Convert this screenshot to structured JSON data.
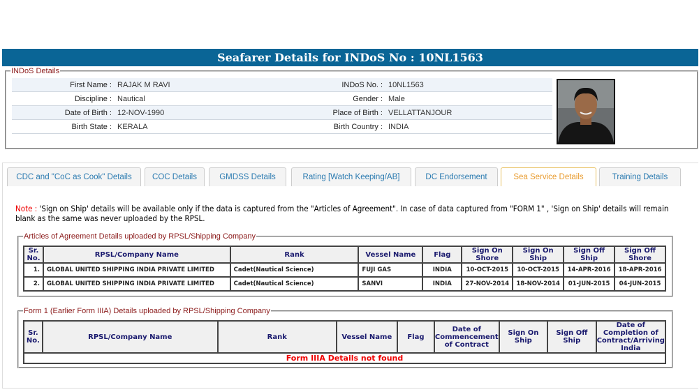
{
  "header": {
    "title": "Seafarer Details for INDoS No : 10NL1563"
  },
  "indos": {
    "legend": "INDoS Details",
    "rows": [
      {
        "l1": "First Name :",
        "v1": "RAJAK M RAVI",
        "l2": "INDoS No. :",
        "v2": "10NL1563"
      },
      {
        "l1": "Discipline :",
        "v1": "Nautical",
        "l2": "Gender :",
        "v2": "Male"
      },
      {
        "l1": "Date of Birth :",
        "v1": "12-NOV-1990",
        "l2": "Place of Birth :",
        "v2": "VELLATTANJOUR"
      },
      {
        "l1": "Birth State :",
        "v1": "KERALA",
        "l2": "Birth Country :",
        "v2": "INDIA"
      }
    ]
  },
  "tabs": [
    {
      "label": "CDC and \"CoC as Cook\" Details"
    },
    {
      "label": "COC Details"
    },
    {
      "label": "GMDSS Details"
    },
    {
      "label": "Rating [Watch Keeping/AB]"
    },
    {
      "label": "DC Endorsement"
    },
    {
      "label": "Sea Service Details",
      "active": true
    },
    {
      "label": "Training Details"
    }
  ],
  "note": {
    "prefix": "Note :",
    "text": " 'Sign on Ship' details will be available only if the data is captured from the \"Articles of Agreement\". In case of data captured from \"FORM 1\" , 'Sign on Ship' details will remain blank as the same was never uploaded by the RPSL."
  },
  "aoa": {
    "legend": "Articles of Agreement Details uploaded by RPSL/Shipping Company",
    "columns": [
      "Sr. No.",
      "RPSL/Company Name",
      "Rank",
      "Vessel Name",
      "Flag",
      "Sign On Shore",
      "Sign On Ship",
      "Sign Off Ship",
      "Sign Off Shore"
    ],
    "rows": [
      [
        "1.",
        "GLOBAL UNITED SHIPPING INDIA PRIVATE LIMITED",
        "Cadet(Nautical Science)",
        "FUJI GAS",
        "INDIA",
        "10-OCT-2015",
        "10-OCT-2015",
        "14-APR-2016",
        "18-APR-2016"
      ],
      [
        "2.",
        "GLOBAL UNITED SHIPPING INDIA PRIVATE LIMITED",
        "Cadet(Nautical Science)",
        "SANVI",
        "INDIA",
        "27-NOV-2014",
        "18-NOV-2014",
        "01-JUN-2015",
        "04-JUN-2015"
      ]
    ]
  },
  "form1": {
    "legend": "Form 1 (Earlier Form IIIA) Details uploaded by RPSL/Shipping Company",
    "columns": [
      "Sr. No.",
      "RPSL/Company Name",
      "Rank",
      "Vessel Name",
      "Flag",
      "Date of Commencement of Contract",
      "Sign On Ship",
      "Sign Off Ship",
      "Date of Completion of Contract/Arriving India"
    ],
    "empty_message": "Form IIIA Details not found"
  },
  "colors": {
    "header": "#0a6596",
    "legend": "#8b1a1a",
    "active_tab": "#e89a2c",
    "tab": "#2a7ab0",
    "alert": "#ee0000"
  }
}
